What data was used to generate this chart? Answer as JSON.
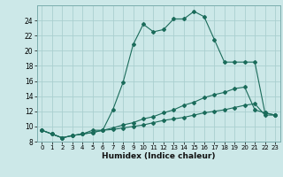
{
  "title": "",
  "xlabel": "Humidex (Indice chaleur)",
  "bg_color": "#cce8e8",
  "grid_color": "#aacfcf",
  "line_color": "#1a6b5a",
  "xlim": [
    -0.5,
    23.5
  ],
  "ylim": [
    8,
    26
  ],
  "yticks": [
    8,
    10,
    12,
    14,
    16,
    18,
    20,
    22,
    24
  ],
  "xticks": [
    0,
    1,
    2,
    3,
    4,
    5,
    6,
    7,
    8,
    9,
    10,
    11,
    12,
    13,
    14,
    15,
    16,
    17,
    18,
    19,
    20,
    21,
    22,
    23
  ],
  "series": [
    {
      "x": [
        0,
        1,
        2,
        3,
        4,
        5,
        6,
        7,
        8,
        9,
        10,
        11,
        12,
        13,
        14,
        15,
        16,
        17,
        18,
        19,
        20,
        21,
        22,
        23
      ],
      "y": [
        9.5,
        9.0,
        8.5,
        8.8,
        9.0,
        9.5,
        9.5,
        12.2,
        15.8,
        20.8,
        23.5,
        22.5,
        22.8,
        24.2,
        24.2,
        25.2,
        24.5,
        21.5,
        18.5,
        18.5,
        18.5,
        18.5,
        11.8,
        11.5
      ]
    },
    {
      "x": [
        0,
        1,
        2,
        3,
        4,
        5,
        6,
        7,
        8,
        9,
        10,
        11,
        12,
        13,
        14,
        15,
        16,
        17,
        18,
        19,
        20,
        21,
        22,
        23
      ],
      "y": [
        9.5,
        9.0,
        8.5,
        8.8,
        9.0,
        9.2,
        9.5,
        9.8,
        10.2,
        10.5,
        11.0,
        11.3,
        11.8,
        12.2,
        12.8,
        13.2,
        13.8,
        14.2,
        14.5,
        15.0,
        15.2,
        12.2,
        11.8,
        11.5
      ]
    },
    {
      "x": [
        0,
        1,
        2,
        3,
        4,
        5,
        6,
        7,
        8,
        9,
        10,
        11,
        12,
        13,
        14,
        15,
        16,
        17,
        18,
        19,
        20,
        21,
        22,
        23
      ],
      "y": [
        9.5,
        9.0,
        8.5,
        8.8,
        9.0,
        9.2,
        9.5,
        9.6,
        9.8,
        10.0,
        10.2,
        10.5,
        10.8,
        11.0,
        11.2,
        11.5,
        11.8,
        12.0,
        12.2,
        12.5,
        12.8,
        13.0,
        11.5,
        11.5
      ]
    }
  ]
}
